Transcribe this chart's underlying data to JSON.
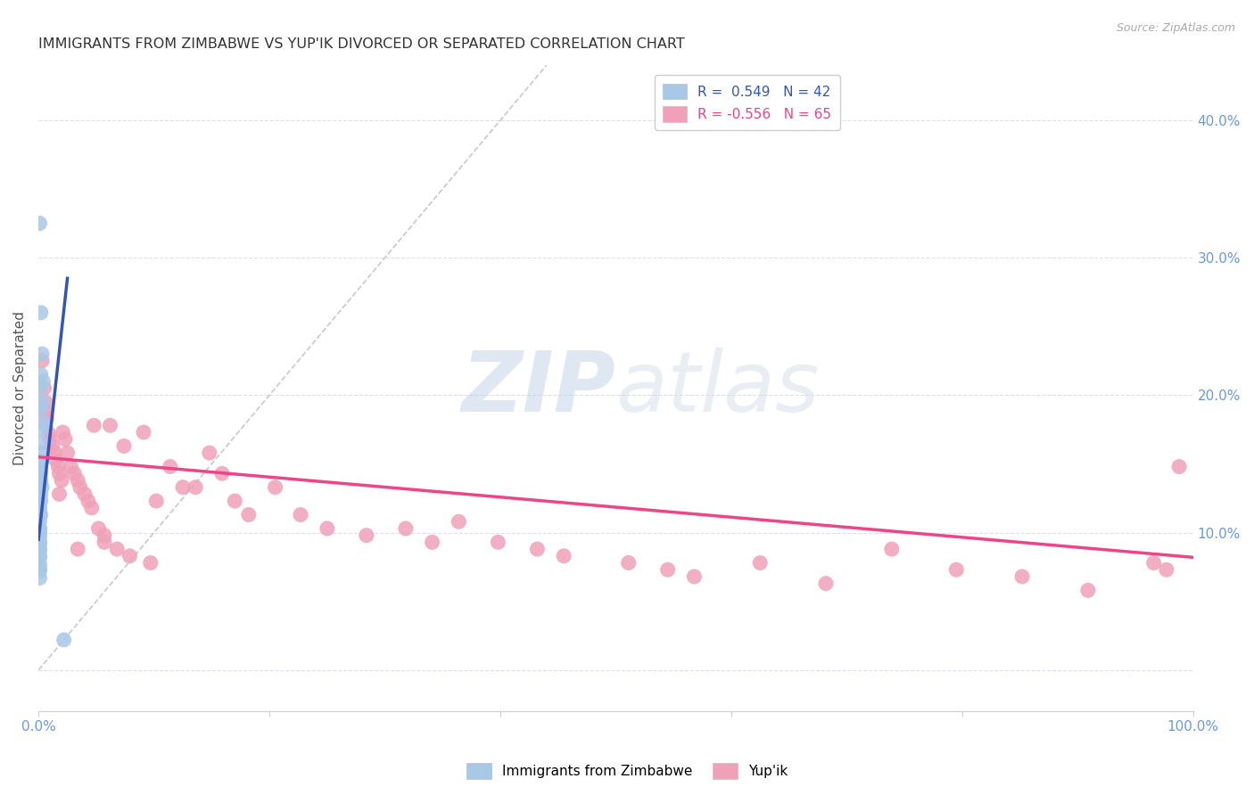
{
  "title": "IMMIGRANTS FROM ZIMBABWE VS YUP'IK DIVORCED OR SEPARATED CORRELATION CHART",
  "source": "Source: ZipAtlas.com",
  "ylabel": "Divorced or Separated",
  "xlim": [
    0.0,
    1.0
  ],
  "ylim": [
    -0.03,
    0.44
  ],
  "watermark_zip": "ZIP",
  "watermark_atlas": "atlas",
  "legend_blue_r": "R =  0.549",
  "legend_blue_n": "N = 42",
  "legend_pink_r": "R = -0.556",
  "legend_pink_n": "N = 65",
  "blue_color": "#a8c8e8",
  "pink_color": "#f0a0b8",
  "blue_line_color": "#3355bb",
  "pink_line_color": "#ee4488",
  "diag_line_color": "#bbbbbb",
  "grid_color": "#ddddee",
  "tick_color": "#6699ee",
  "blue_scatter_x": [
    0.002,
    0.003,
    0.002,
    0.004,
    0.001,
    0.003,
    0.002,
    0.004,
    0.003,
    0.002,
    0.002,
    0.003,
    0.002,
    0.002,
    0.002,
    0.002,
    0.003,
    0.002,
    0.002,
    0.001,
    0.001,
    0.002,
    0.001,
    0.001,
    0.001,
    0.001,
    0.001,
    0.001,
    0.001,
    0.001,
    0.001,
    0.001,
    0.001,
    0.001,
    0.001,
    0.001,
    0.001,
    0.001,
    0.001,
    0.001,
    0.022,
    0.001
  ],
  "blue_scatter_y": [
    0.26,
    0.23,
    0.215,
    0.21,
    0.205,
    0.195,
    0.19,
    0.18,
    0.175,
    0.165,
    0.158,
    0.152,
    0.148,
    0.143,
    0.138,
    0.136,
    0.133,
    0.128,
    0.123,
    0.118,
    0.117,
    0.113,
    0.112,
    0.108,
    0.103,
    0.102,
    0.101,
    0.1,
    0.097,
    0.093,
    0.092,
    0.088,
    0.087,
    0.083,
    0.082,
    0.125,
    0.077,
    0.074,
    0.072,
    0.067,
    0.022,
    0.325
  ],
  "pink_scatter_x": [
    0.003,
    0.005,
    0.006,
    0.006,
    0.007,
    0.009,
    0.01,
    0.012,
    0.014,
    0.015,
    0.017,
    0.018,
    0.018,
    0.02,
    0.021,
    0.023,
    0.025,
    0.028,
    0.031,
    0.034,
    0.034,
    0.036,
    0.04,
    0.043,
    0.046,
    0.048,
    0.052,
    0.057,
    0.057,
    0.062,
    0.068,
    0.074,
    0.079,
    0.091,
    0.097,
    0.102,
    0.114,
    0.125,
    0.136,
    0.148,
    0.159,
    0.17,
    0.182,
    0.205,
    0.227,
    0.25,
    0.284,
    0.318,
    0.341,
    0.364,
    0.398,
    0.432,
    0.455,
    0.511,
    0.545,
    0.568,
    0.625,
    0.682,
    0.739,
    0.795,
    0.852,
    0.909,
    0.966,
    0.977,
    0.988
  ],
  "pink_scatter_y": [
    0.225,
    0.205,
    0.195,
    0.188,
    0.183,
    0.172,
    0.168,
    0.163,
    0.158,
    0.153,
    0.148,
    0.143,
    0.128,
    0.138,
    0.173,
    0.168,
    0.158,
    0.148,
    0.143,
    0.088,
    0.138,
    0.133,
    0.128,
    0.123,
    0.118,
    0.178,
    0.103,
    0.098,
    0.093,
    0.178,
    0.088,
    0.163,
    0.083,
    0.173,
    0.078,
    0.123,
    0.148,
    0.133,
    0.133,
    0.158,
    0.143,
    0.123,
    0.113,
    0.133,
    0.113,
    0.103,
    0.098,
    0.103,
    0.093,
    0.108,
    0.093,
    0.088,
    0.083,
    0.078,
    0.073,
    0.068,
    0.078,
    0.063,
    0.088,
    0.073,
    0.068,
    0.058,
    0.078,
    0.073,
    0.148
  ],
  "blue_line_x0": 0.0,
  "blue_line_y0": 0.095,
  "blue_line_x1": 0.025,
  "blue_line_y1": 0.285,
  "pink_line_x0": 0.0,
  "pink_line_y0": 0.155,
  "pink_line_x1": 1.0,
  "pink_line_y1": 0.082,
  "diag_line_x0": 0.0,
  "diag_line_y0": 0.0,
  "diag_line_x1": 0.44,
  "diag_line_y1": 0.44
}
